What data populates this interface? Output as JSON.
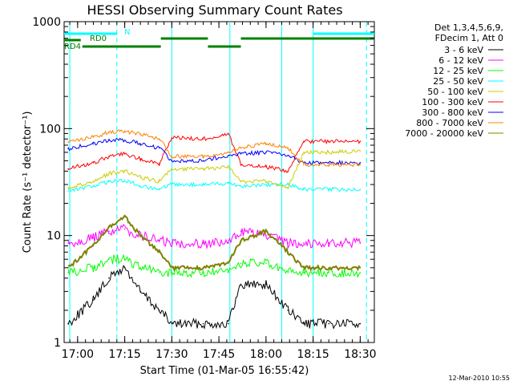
{
  "chart_data": {
    "type": "line",
    "title": "HESSI Observing Summary Count Rates",
    "xlabel": "Start Time (01-Mar-05 16:55:42)",
    "ylabel": "Count Rate (s⁻¹ detector⁻¹)",
    "yscale": "log",
    "ylim": [
      1,
      1000
    ],
    "xlim": [
      "16:55:42",
      "18:34:30"
    ],
    "xticks": [
      "17:00",
      "17:15",
      "17:30",
      "17:45",
      "18:00",
      "18:15",
      "18:30"
    ],
    "yticks": [
      "1",
      "10",
      "100",
      "1000"
    ],
    "legend_header": [
      "Det 1,3,4,5,6,9,",
      "FDecim 1, Att 0"
    ],
    "legend_position": "right",
    "timestamp": "12-Mar-2010 10:55",
    "annotations": {
      "night_marker": "N",
      "saa_label_1": "RD0",
      "saa_label_2": "RD4",
      "night_color": "#00ffff",
      "saa_color": "#008000"
    },
    "series": [
      {
        "name": "3 - 6 keV",
        "color": "#000000",
        "x": [
          "16:57",
          "17:05",
          "17:10",
          "17:15",
          "17:20",
          "17:26",
          "17:30",
          "17:40",
          "17:48",
          "17:52",
          "18:00",
          "18:07",
          "18:12",
          "18:20",
          "18:30"
        ],
        "values": [
          1.5,
          2.5,
          4,
          5,
          3,
          2,
          1.5,
          1.5,
          1.5,
          3.5,
          3.5,
          2,
          1.5,
          1.5,
          1.5
        ]
      },
      {
        "name": "6 - 12 keV",
        "color": "#ff00ff",
        "x": [
          "16:57",
          "17:05",
          "17:10",
          "17:15",
          "17:20",
          "17:26",
          "17:30",
          "17:40",
          "17:48",
          "17:52",
          "18:00",
          "18:07",
          "18:12",
          "18:20",
          "18:30"
        ],
        "values": [
          8.5,
          9.5,
          11,
          11.5,
          10,
          9,
          8.5,
          8.5,
          8.5,
          11,
          10,
          8.5,
          8.5,
          8.5,
          8.5
        ]
      },
      {
        "name": "12 - 25 keV",
        "color": "#00ff00",
        "x": [
          "16:57",
          "17:05",
          "17:10",
          "17:15",
          "17:20",
          "17:26",
          "17:30",
          "17:40",
          "17:48",
          "17:52",
          "18:00",
          "18:07",
          "18:12",
          "18:20",
          "18:30"
        ],
        "values": [
          4.5,
          5,
          6,
          6,
          5,
          4.5,
          4.5,
          4.5,
          4.5,
          5.5,
          5.5,
          4.5,
          4.5,
          4.5,
          4.5
        ]
      },
      {
        "name": "25 - 50 keV",
        "color": "#00ffff",
        "x": [
          "16:57",
          "17:05",
          "17:10",
          "17:15",
          "17:20",
          "17:26",
          "17:30",
          "17:40",
          "17:48",
          "17:52",
          "18:00",
          "18:07",
          "18:12",
          "18:20",
          "18:30"
        ],
        "values": [
          26,
          29,
          32,
          33,
          29,
          27,
          30,
          30,
          31,
          29,
          30,
          30,
          27,
          27,
          27
        ]
      },
      {
        "name": "50 - 100 keV",
        "color": "#cccc00",
        "x": [
          "16:57",
          "17:05",
          "17:10",
          "17:15",
          "17:20",
          "17:26",
          "17:30",
          "17:40",
          "17:48",
          "17:52",
          "18:00",
          "18:07",
          "18:12",
          "18:20",
          "18:30"
        ],
        "values": [
          28,
          32,
          38,
          40,
          35,
          32,
          42,
          42,
          44,
          32,
          32,
          28,
          60,
          60,
          62
        ]
      },
      {
        "name": "100 - 300 keV",
        "color": "#ff0000",
        "x": [
          "16:57",
          "17:05",
          "17:10",
          "17:15",
          "17:20",
          "17:26",
          "17:30",
          "17:40",
          "17:48",
          "17:52",
          "18:00",
          "18:07",
          "18:12",
          "18:20",
          "18:30"
        ],
        "values": [
          42,
          48,
          55,
          58,
          52,
          47,
          82,
          80,
          90,
          46,
          44,
          40,
          76,
          76,
          76
        ]
      },
      {
        "name": "300 - 800 keV",
        "color": "#0000ff",
        "x": [
          "16:57",
          "17:05",
          "17:10",
          "17:15",
          "17:20",
          "17:26",
          "17:30",
          "17:40",
          "17:48",
          "17:52",
          "18:00",
          "18:07",
          "18:12",
          "18:20",
          "18:30"
        ],
        "values": [
          65,
          72,
          78,
          78,
          72,
          66,
          50,
          50,
          56,
          58,
          60,
          56,
          48,
          48,
          48
        ]
      },
      {
        "name": "800 - 7000 keV",
        "color": "#ff8000",
        "x": [
          "16:57",
          "17:05",
          "17:10",
          "17:15",
          "17:20",
          "17:26",
          "17:30",
          "17:40",
          "17:48",
          "17:52",
          "18:00",
          "18:07",
          "18:12",
          "18:20",
          "18:30"
        ],
        "values": [
          75,
          84,
          92,
          95,
          88,
          80,
          55,
          55,
          60,
          66,
          72,
          66,
          46,
          46,
          46
        ]
      },
      {
        "name": "7000 - 20000 keV",
        "color": "#808000",
        "x": [
          "16:57",
          "17:05",
          "17:10",
          "17:15",
          "17:20",
          "17:26",
          "17:30",
          "17:40",
          "17:48",
          "17:52",
          "18:00",
          "18:07",
          "18:12",
          "18:20",
          "18:30"
        ],
        "values": [
          5,
          8,
          12,
          15,
          10,
          7,
          5,
          5,
          5.5,
          9,
          11,
          7,
          5,
          5,
          5
        ]
      }
    ]
  }
}
